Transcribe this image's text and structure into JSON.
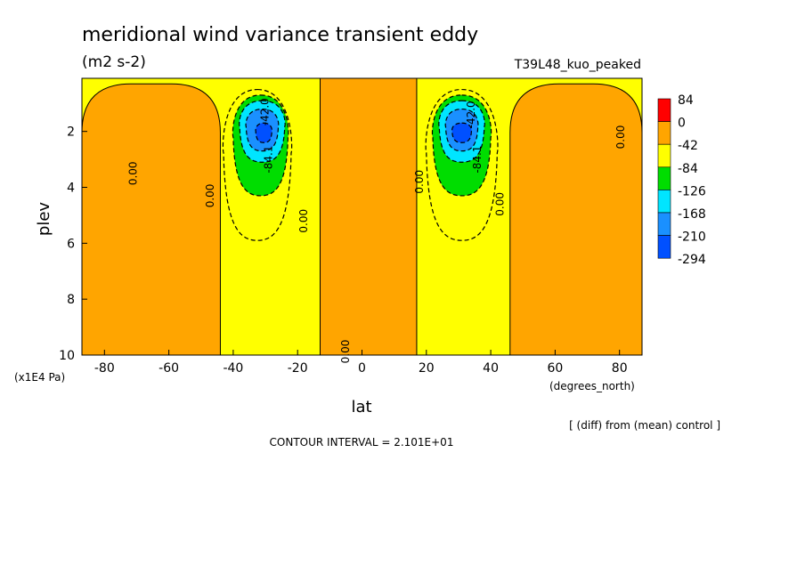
{
  "chart_data": {
    "type": "contour",
    "title": "meridional wind variance transient eddy",
    "units": "(m2 s-2)",
    "experiment": "T39L48_kuo_peaked",
    "xlabel": "lat",
    "ylabel": "plev",
    "x_unit": "(degrees_north)",
    "y_unit": "(x1E4 Pa)",
    "xlim": [
      -87,
      87
    ],
    "ylim": [
      10,
      0.1
    ],
    "y_reversed": true,
    "x_ticks": [
      -80,
      -60,
      -40,
      -20,
      0,
      20,
      40,
      60,
      80
    ],
    "x_tick_labels": [
      "-80",
      "-60",
      "-40",
      "-20",
      "0",
      "20",
      "40",
      "60",
      "80"
    ],
    "y_ticks": [
      2,
      4,
      6,
      8,
      10
    ],
    "y_tick_labels": [
      "2",
      "4",
      "6",
      "8",
      "10"
    ],
    "legend": {
      "placement": "right",
      "levels": [
        "84",
        "0",
        "-42",
        "-84",
        "-126",
        "-168",
        "-210",
        "-294"
      ],
      "colors": [
        "#ff0000",
        "#ffa500",
        "#ffff00",
        "#00dd00",
        "#00e5ff",
        "#1a90ff",
        "#0050ff"
      ]
    },
    "contour_labels": [
      "-42.0",
      "0.00",
      "0.00",
      "0.00",
      "-84.1",
      "-42.0",
      "0.00",
      "0.00",
      "0.00",
      "-84.1",
      "0.00"
    ],
    "note": "[ (diff) from (mean) control ]",
    "contour_interval_text": "CONTOUR INTERVAL = 2.101E+01",
    "bands": [
      {
        "level": "0",
        "x_min": -87,
        "x_max": -44,
        "p_top": 0.3,
        "p_bottom": 10
      },
      {
        "level": "0",
        "x_min": -13,
        "x_max": 17,
        "p_top": 0.1,
        "p_bottom": 10
      },
      {
        "level": "0",
        "x_min": 46,
        "x_max": 87,
        "p_top": 0.3,
        "p_bottom": 10
      },
      {
        "level": "-42",
        "x_min": -43,
        "x_max": -22,
        "p_top": 0.5,
        "p_bottom": 5.9
      },
      {
        "level": "-42",
        "x_min": 20,
        "x_max": 42,
        "p_top": 0.5,
        "p_bottom": 5.9
      },
      {
        "level": "-84",
        "x_min": -40,
        "x_max": -23,
        "p_top": 0.7,
        "p_bottom": 4.3
      },
      {
        "level": "-84",
        "x_min": 22,
        "x_max": 40,
        "p_top": 0.7,
        "p_bottom": 4.3
      },
      {
        "level": "-126",
        "x_min": -38,
        "x_max": -24,
        "p_top": 0.9,
        "p_bottom": 3.1
      },
      {
        "level": "-126",
        "x_min": 24,
        "x_max": 38,
        "p_top": 0.9,
        "p_bottom": 3.1
      },
      {
        "level": "-168",
        "x_min": -36,
        "x_max": -26,
        "p_top": 1.2,
        "p_bottom": 2.7
      },
      {
        "level": "-168",
        "x_min": 26,
        "x_max": 36,
        "p_top": 1.2,
        "p_bottom": 2.7
      },
      {
        "level": "-210",
        "x_min": -33,
        "x_max": -28,
        "p_top": 1.7,
        "p_bottom": 2.4
      },
      {
        "level": "-210",
        "x_min": 28,
        "x_max": 34,
        "p_top": 1.7,
        "p_bottom": 2.4
      }
    ]
  }
}
